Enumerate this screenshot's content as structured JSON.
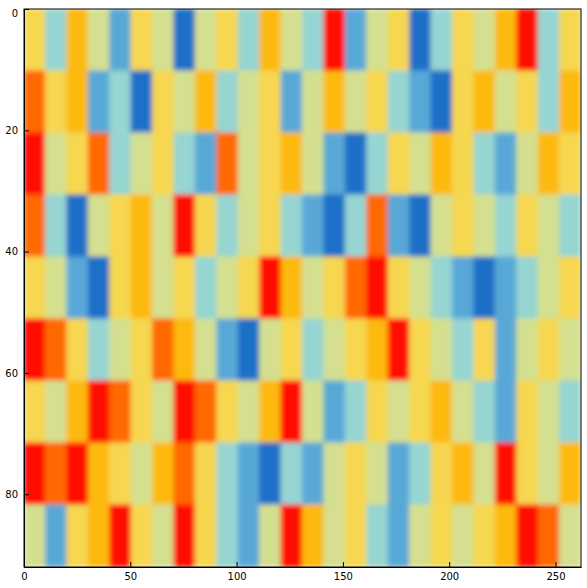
{
  "chart_data": {
    "type": "heatmap",
    "xlim": [
      0,
      262
    ],
    "ylim": [
      92,
      0
    ],
    "xticks": [
      0,
      50,
      100,
      150,
      200,
      250
    ],
    "yticks": [
      0,
      20,
      40,
      60,
      80
    ],
    "values": [
      [
        0.6,
        0.4,
        0.7,
        0.5,
        0.3,
        0.6,
        0.5,
        0.2,
        0.5,
        0.6,
        0.4,
        0.7,
        0.5,
        0.4,
        0.9,
        0.3,
        0.5,
        0.6,
        0.2,
        0.4,
        0.6,
        0.5,
        0.7,
        0.9,
        0.4,
        0.6
      ],
      [
        0.8,
        0.6,
        0.7,
        0.3,
        0.4,
        0.2,
        0.6,
        0.5,
        0.7,
        0.4,
        0.5,
        0.6,
        0.3,
        0.5,
        0.7,
        0.5,
        0.6,
        0.4,
        0.3,
        0.2,
        0.6,
        0.7,
        0.5,
        0.6,
        0.4,
        0.7
      ],
      [
        0.9,
        0.5,
        0.6,
        0.8,
        0.4,
        0.5,
        0.6,
        0.4,
        0.3,
        0.8,
        0.5,
        0.6,
        0.7,
        0.5,
        0.3,
        0.2,
        0.4,
        0.6,
        0.5,
        0.7,
        0.6,
        0.4,
        0.3,
        0.5,
        0.7,
        0.6
      ],
      [
        0.8,
        0.4,
        0.2,
        0.5,
        0.6,
        0.7,
        0.5,
        0.9,
        0.6,
        0.4,
        0.5,
        0.6,
        0.4,
        0.3,
        0.2,
        0.4,
        0.8,
        0.3,
        0.2,
        0.5,
        0.6,
        0.5,
        0.4,
        0.6,
        0.5,
        0.4
      ],
      [
        0.6,
        0.5,
        0.3,
        0.2,
        0.6,
        0.7,
        0.5,
        0.6,
        0.4,
        0.5,
        0.6,
        0.9,
        0.7,
        0.5,
        0.6,
        0.8,
        0.9,
        0.6,
        0.5,
        0.4,
        0.3,
        0.2,
        0.3,
        0.4,
        0.5,
        0.6
      ],
      [
        0.9,
        0.8,
        0.6,
        0.4,
        0.5,
        0.6,
        0.8,
        0.7,
        0.5,
        0.3,
        0.2,
        0.5,
        0.6,
        0.4,
        0.5,
        0.6,
        0.7,
        0.9,
        0.6,
        0.5,
        0.4,
        0.6,
        0.3,
        0.5,
        0.6,
        0.5
      ],
      [
        0.6,
        0.5,
        0.7,
        0.9,
        0.8,
        0.6,
        0.5,
        0.9,
        0.8,
        0.6,
        0.5,
        0.7,
        0.9,
        0.5,
        0.3,
        0.4,
        0.6,
        0.5,
        0.6,
        0.7,
        0.5,
        0.4,
        0.3,
        0.6,
        0.5,
        0.4
      ],
      [
        0.9,
        0.8,
        0.9,
        0.7,
        0.6,
        0.5,
        0.7,
        0.8,
        0.6,
        0.4,
        0.3,
        0.2,
        0.4,
        0.3,
        0.5,
        0.6,
        0.5,
        0.3,
        0.4,
        0.6,
        0.7,
        0.5,
        0.9,
        0.6,
        0.5,
        0.7
      ],
      [
        0.5,
        0.3,
        0.6,
        0.7,
        0.9,
        0.6,
        0.5,
        0.9,
        0.6,
        0.4,
        0.3,
        0.5,
        0.9,
        0.7,
        0.5,
        0.6,
        0.4,
        0.3,
        0.5,
        0.6,
        0.5,
        0.6,
        0.7,
        0.9,
        0.8,
        0.5
      ]
    ]
  }
}
